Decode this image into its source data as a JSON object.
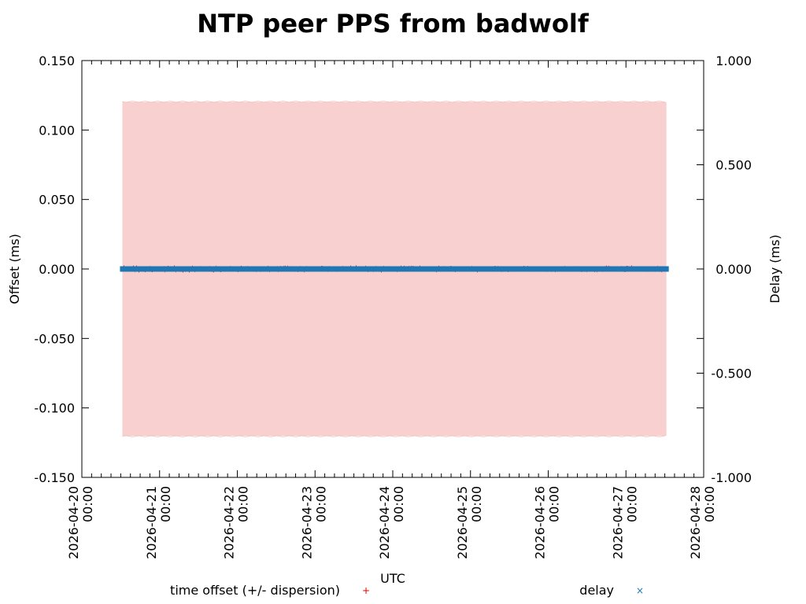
{
  "chart_data": {
    "type": "scatter",
    "title": "NTP peer PPS from badwolf",
    "xlabel": "UTC",
    "ylabel": "Offset (ms)",
    "y2label": "Delay (ms)",
    "x_ticks": [
      {
        "date": "2026-04-20",
        "time": "00:00"
      },
      {
        "date": "2026-04-21",
        "time": "00:00"
      },
      {
        "date": "2026-04-22",
        "time": "00:00"
      },
      {
        "date": "2026-04-23",
        "time": "00:00"
      },
      {
        "date": "2026-04-24",
        "time": "00:00"
      },
      {
        "date": "2026-04-25",
        "time": "00:00"
      },
      {
        "date": "2026-04-26",
        "time": "00:00"
      },
      {
        "date": "2026-04-27",
        "time": "00:00"
      },
      {
        "date": "2026-04-28",
        "time": "00:00"
      }
    ],
    "xlim": [
      "2026-04-20 00:00",
      "2026-04-28 00:00"
    ],
    "ylim": [
      -0.15,
      0.15
    ],
    "y2lim": [
      -1.0,
      1.0
    ],
    "y_ticks": [
      "-0.150",
      "-0.100",
      "-0.050",
      "0.000",
      "0.050",
      "0.100",
      "0.150"
    ],
    "y2_ticks": [
      "-1.000",
      "-0.500",
      "0.000",
      "0.500",
      "1.000"
    ],
    "series": [
      {
        "name": "time offset (+/- dispersion)",
        "axis": "y",
        "color": "#e00000",
        "band_color": "#f8d0cf",
        "marker": "+",
        "x_range": [
          "2026-04-20 12:30",
          "2026-04-27 12:30"
        ],
        "offset_range": [
          -0.002,
          0.002
        ],
        "dispersion": 0.12
      },
      {
        "name": "delay",
        "axis": "y2",
        "color": "#1f77b4",
        "marker": "x",
        "x_range": [
          "2026-04-20 12:30",
          "2026-04-27 12:30"
        ],
        "value": 0.0
      }
    ],
    "legend": "bottom",
    "grid": false
  }
}
